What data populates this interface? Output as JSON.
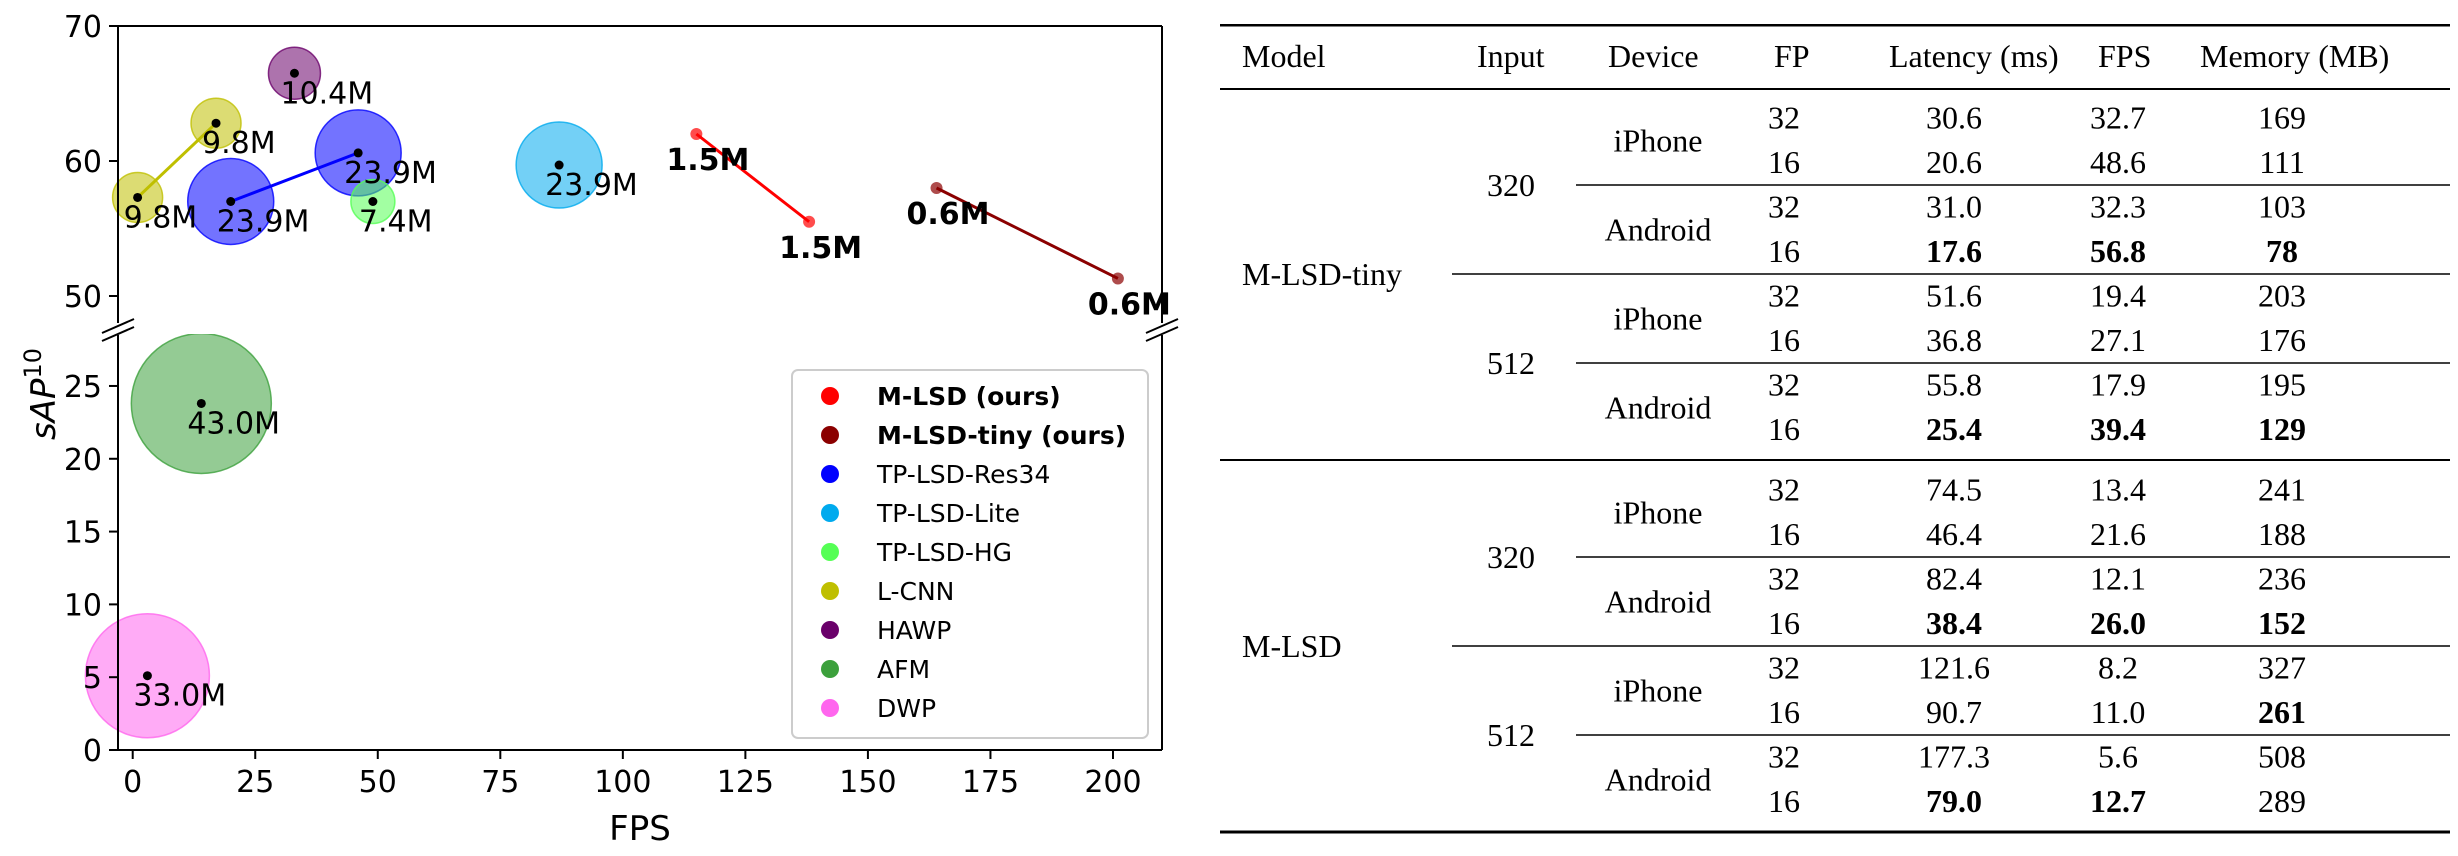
{
  "chart_data": {
    "type": "scatter",
    "xlabel": "FPS",
    "ylabel": "sAP",
    "ylabel_sup": "10",
    "xlim": [
      -3,
      210
    ],
    "x_ticks": [
      "0",
      "25",
      "50",
      "75",
      "100",
      "125",
      "150",
      "175",
      "200"
    ],
    "y_ticks_upper": [
      "50",
      "60",
      "70"
    ],
    "y_ticks_lower": [
      "0",
      "5",
      "10",
      "15",
      "20",
      "25"
    ],
    "upper_ylim": [
      48,
      70
    ],
    "lower_ylim": [
      0,
      28.5
    ],
    "axis_break": true,
    "grid": false,
    "legend_position": "lower-right",
    "legend": [
      {
        "label": "M-LSD (ours)",
        "color": "#ff0000",
        "bold": true
      },
      {
        "label": "M-LSD-tiny (ours)",
        "color": "#8b0000",
        "bold": true
      },
      {
        "label": "TP-LSD-Res34",
        "color": "#0000ff",
        "bold": false
      },
      {
        "label": "TP-LSD-Lite",
        "color": "#00aaee",
        "bold": false
      },
      {
        "label": "TP-LSD-HG",
        "color": "#55ff55",
        "bold": false
      },
      {
        "label": "L-CNN",
        "color": "#bfbf00",
        "bold": false
      },
      {
        "label": "HAWP",
        "color": "#6a006a",
        "bold": false
      },
      {
        "label": "AFM",
        "color": "#3ca03c",
        "bold": false
      },
      {
        "label": "DWP",
        "color": "#ff66ee",
        "bold": false
      }
    ],
    "series": [
      {
        "name": "M-LSD (ours)",
        "color": "#ff0000",
        "bubble": false,
        "line": true,
        "points": [
          {
            "x": 115,
            "y": 62.0,
            "label": "1.5M"
          },
          {
            "x": 138,
            "y": 55.5,
            "label": "1.5M"
          }
        ]
      },
      {
        "name": "M-LSD-tiny (ours)",
        "color": "#8b0000",
        "bubble": false,
        "line": true,
        "points": [
          {
            "x": 164,
            "y": 58.0,
            "label": "0.6M"
          },
          {
            "x": 201,
            "y": 51.3,
            "label": "0.6M"
          }
        ]
      },
      {
        "name": "TP-LSD-Res34",
        "color": "#0000ff",
        "bubble": true,
        "line": true,
        "points": [
          {
            "x": 20,
            "y": 57.0,
            "label": "23.9M"
          },
          {
            "x": 46,
            "y": 60.6,
            "label": "23.9M"
          }
        ]
      },
      {
        "name": "TP-LSD-Lite",
        "color": "#00aaee",
        "bubble": true,
        "line": false,
        "points": [
          {
            "x": 87,
            "y": 59.7,
            "label": "23.9M"
          }
        ]
      },
      {
        "name": "TP-LSD-HG",
        "color": "#55ff55",
        "bubble": true,
        "line": false,
        "points": [
          {
            "x": 49,
            "y": 57.0,
            "label": "7.4M"
          }
        ]
      },
      {
        "name": "L-CNN",
        "color": "#bfbf00",
        "bubble": true,
        "line": true,
        "points": [
          {
            "x": 1,
            "y": 57.3,
            "label": "9.8M"
          },
          {
            "x": 17,
            "y": 62.8,
            "label": "9.8M"
          }
        ]
      },
      {
        "name": "HAWP",
        "color": "#6a006a",
        "bubble": true,
        "line": false,
        "points": [
          {
            "x": 33,
            "y": 66.5,
            "label": "10.4M"
          }
        ]
      },
      {
        "name": "AFM",
        "color": "#3ca03c",
        "bubble": true,
        "line": false,
        "points": [
          {
            "x": 14,
            "y": 23.8,
            "label": "43.0M"
          }
        ]
      },
      {
        "name": "DWP",
        "color": "#ff66ee",
        "bubble": true,
        "line": false,
        "points": [
          {
            "x": 3,
            "y": 5.1,
            "label": "33.0M"
          }
        ]
      }
    ]
  },
  "table": {
    "headers": [
      "Model",
      "Input",
      "Device",
      "FP",
      "Latency (ms)",
      "FPS",
      "Memory (MB)"
    ],
    "groups": [
      {
        "model": "M-LSD-tiny",
        "inputs": [
          {
            "input": "320",
            "devices": [
              {
                "device": "iPhone",
                "rows": [
                  {
                    "fp": "32",
                    "latency": "30.6",
                    "fps": "32.7",
                    "memory": "169",
                    "bold": [
                      false,
                      false,
                      false
                    ]
                  },
                  {
                    "fp": "16",
                    "latency": "20.6",
                    "fps": "48.6",
                    "memory": "111",
                    "bold": [
                      false,
                      false,
                      false
                    ]
                  }
                ]
              },
              {
                "device": "Android",
                "rows": [
                  {
                    "fp": "32",
                    "latency": "31.0",
                    "fps": "32.3",
                    "memory": "103",
                    "bold": [
                      false,
                      false,
                      false
                    ]
                  },
                  {
                    "fp": "16",
                    "latency": "17.6",
                    "fps": "56.8",
                    "memory": "78",
                    "bold": [
                      true,
                      true,
                      true
                    ]
                  }
                ]
              }
            ]
          },
          {
            "input": "512",
            "devices": [
              {
                "device": "iPhone",
                "rows": [
                  {
                    "fp": "32",
                    "latency": "51.6",
                    "fps": "19.4",
                    "memory": "203",
                    "bold": [
                      false,
                      false,
                      false
                    ]
                  },
                  {
                    "fp": "16",
                    "latency": "36.8",
                    "fps": "27.1",
                    "memory": "176",
                    "bold": [
                      false,
                      false,
                      false
                    ]
                  }
                ]
              },
              {
                "device": "Android",
                "rows": [
                  {
                    "fp": "32",
                    "latency": "55.8",
                    "fps": "17.9",
                    "memory": "195",
                    "bold": [
                      false,
                      false,
                      false
                    ]
                  },
                  {
                    "fp": "16",
                    "latency": "25.4",
                    "fps": "39.4",
                    "memory": "129",
                    "bold": [
                      true,
                      true,
                      true
                    ]
                  }
                ]
              }
            ]
          }
        ]
      },
      {
        "model": "M-LSD",
        "inputs": [
          {
            "input": "320",
            "devices": [
              {
                "device": "iPhone",
                "rows": [
                  {
                    "fp": "32",
                    "latency": "74.5",
                    "fps": "13.4",
                    "memory": "241",
                    "bold": [
                      false,
                      false,
                      false
                    ]
                  },
                  {
                    "fp": "16",
                    "latency": "46.4",
                    "fps": "21.6",
                    "memory": "188",
                    "bold": [
                      false,
                      false,
                      false
                    ]
                  }
                ]
              },
              {
                "device": "Android",
                "rows": [
                  {
                    "fp": "32",
                    "latency": "82.4",
                    "fps": "12.1",
                    "memory": "236",
                    "bold": [
                      false,
                      false,
                      false
                    ]
                  },
                  {
                    "fp": "16",
                    "latency": "38.4",
                    "fps": "26.0",
                    "memory": "152",
                    "bold": [
                      true,
                      true,
                      true
                    ]
                  }
                ]
              }
            ]
          },
          {
            "input": "512",
            "devices": [
              {
                "device": "iPhone",
                "rows": [
                  {
                    "fp": "32",
                    "latency": "121.6",
                    "fps": "8.2",
                    "memory": "327",
                    "bold": [
                      false,
                      false,
                      false
                    ]
                  },
                  {
                    "fp": "16",
                    "latency": "90.7",
                    "fps": "11.0",
                    "memory": "261",
                    "bold": [
                      false,
                      false,
                      true
                    ]
                  }
                ]
              },
              {
                "device": "Android",
                "rows": [
                  {
                    "fp": "32",
                    "latency": "177.3",
                    "fps": "5.6",
                    "memory": "508",
                    "bold": [
                      false,
                      false,
                      false
                    ]
                  },
                  {
                    "fp": "16",
                    "latency": "79.0",
                    "fps": "12.7",
                    "memory": "289",
                    "bold": [
                      true,
                      true,
                      false
                    ]
                  }
                ]
              }
            ]
          }
        ]
      }
    ]
  }
}
